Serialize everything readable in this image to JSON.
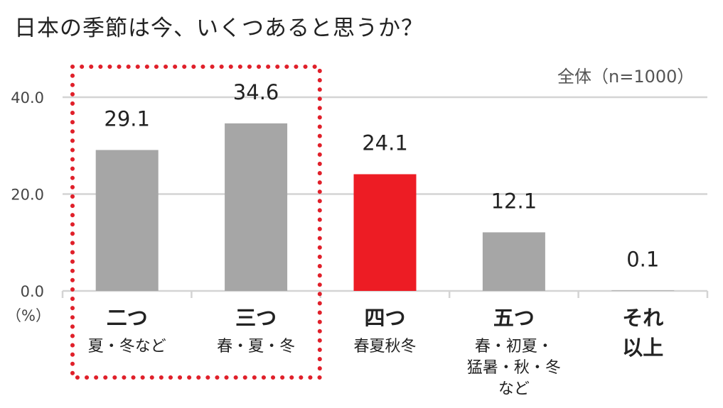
{
  "title": "日本の季節は今、いくつあると思うか？",
  "note": "全体（n=1000）",
  "colors": {
    "bar": "#a6a6a6",
    "highlight": "#ed1c24",
    "grid": "#d4d4d4",
    "dotted_box": "#e0202a"
  },
  "chart_data": {
    "type": "bar",
    "title": "日本の季節は今、いくつあると思うか？",
    "ylabel": "（%）",
    "ylim": [
      0,
      40
    ],
    "yticks": [
      "0.0",
      "20.0",
      "40.0"
    ],
    "grid": true,
    "categories": [
      {
        "main": "二つ",
        "sub": [
          "夏・冬など"
        ]
      },
      {
        "main": "三つ",
        "sub": [
          "春・夏・冬"
        ]
      },
      {
        "main": "四つ",
        "sub": [
          "春夏秋冬"
        ]
      },
      {
        "main": "五つ",
        "sub": [
          "春・初夏・",
          "猛暑・秋・冬",
          "など"
        ]
      },
      {
        "main": "それ",
        "sub": [
          "以上"
        ]
      }
    ],
    "values": [
      29.1,
      34.6,
      24.1,
      12.1,
      0.1
    ],
    "value_labels": [
      "29.1",
      "34.6",
      "24.1",
      "12.1",
      "0.1"
    ],
    "highlight_index": 2,
    "highlighted_group": [
      0,
      1
    ]
  }
}
